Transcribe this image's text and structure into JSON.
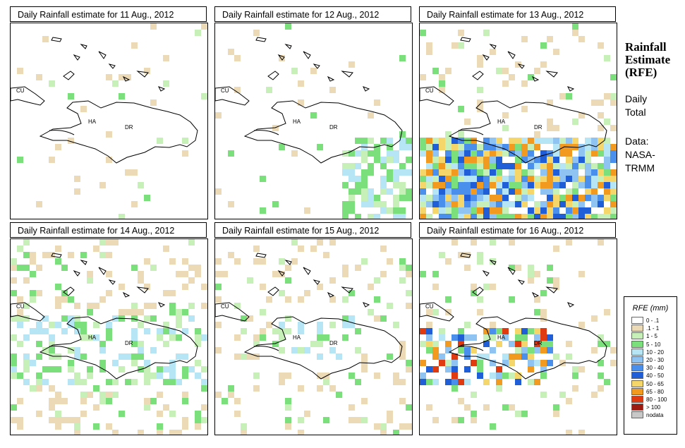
{
  "panels": [
    {
      "title": "Daily Rainfall estimate for  11 Aug., 2012"
    },
    {
      "title": "Daily Rainfall estimate for  12 Aug., 2012"
    },
    {
      "title": "Daily Rainfall estimate for  13 Aug., 2012"
    },
    {
      "title": "Daily Rainfall estimate for  14 Aug., 2012"
    },
    {
      "title": "Daily Rainfall estimate for  15 Aug., 2012"
    },
    {
      "title": "Daily Rainfall estimate for  16 Aug., 2012"
    }
  ],
  "map_labels": {
    "cuba": "CU",
    "haiti": "HA",
    "dr": "DR"
  },
  "side": {
    "title_line1": "Rainfall",
    "title_line2": "Estimate",
    "title_line3": "(RFE)",
    "daily": "Daily",
    "total": "Total",
    "data_label": "Data:",
    "source_line1": "NASA-",
    "source_line2": "TRMM"
  },
  "legend": {
    "title": "RFE (mm)",
    "items": [
      {
        "label": "0 - .1",
        "color": "#ffffff"
      },
      {
        "label": ".1 - 1",
        "color": "#ecd9b6"
      },
      {
        "label": "1 - 5",
        "color": "#c6f0b8"
      },
      {
        "label": "5 - 10",
        "color": "#7be07b"
      },
      {
        "label": "10 - 20",
        "color": "#b6e6f5"
      },
      {
        "label": "20 - 30",
        "color": "#8fc4f2"
      },
      {
        "label": "30 - 40",
        "color": "#4a8fec"
      },
      {
        "label": "40 - 50",
        "color": "#1f5ed6"
      },
      {
        "label": "50 - 65",
        "color": "#f5d66a"
      },
      {
        "label": "65 - 80",
        "color": "#f29a20"
      },
      {
        "label": "80 - 100",
        "color": "#e03a10"
      },
      {
        "label": "> 100",
        "color": "#9c1a10"
      },
      {
        "label": "nodata",
        "color": "#c8c8c8"
      }
    ]
  }
}
